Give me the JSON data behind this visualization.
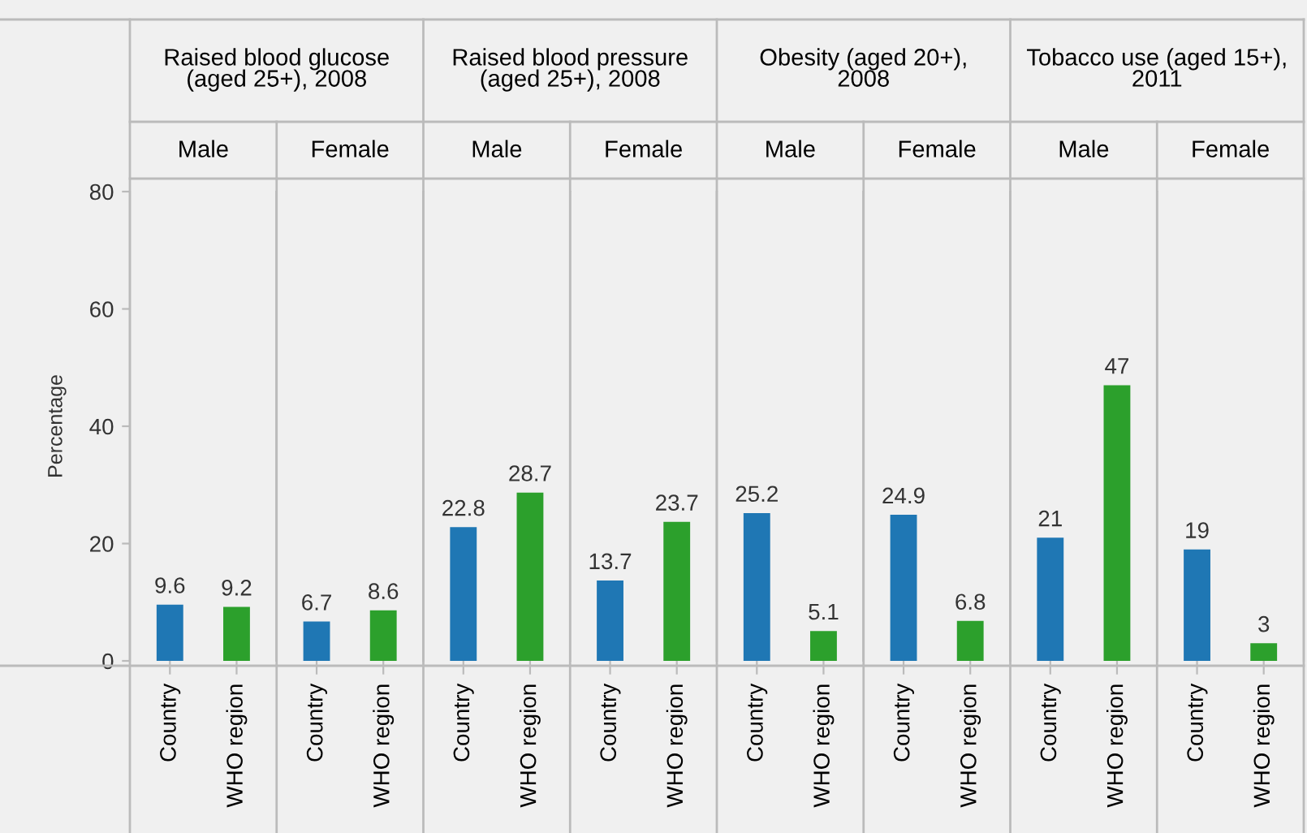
{
  "chart_data": [
    {
      "type": "bar",
      "subtitle": "Raised blood glucose\n(aged 25+), 2008",
      "title": "Male",
      "ylabel": "Percentage",
      "categories": [
        "Country",
        "WHO region"
      ],
      "values": [
        9.6,
        9.2
      ],
      "colors": [
        "#1f77b4",
        "#2ca02c"
      ],
      "data_labels": true,
      "ylim": [
        0,
        80
      ],
      "yticks": [
        0,
        20,
        40,
        60,
        80
      ]
    },
    {
      "type": "bar",
      "title": "Female",
      "categories": [
        "Country",
        "WHO region"
      ],
      "values": [
        6.7,
        8.6
      ],
      "colors": [
        "#1f77b4",
        "#2ca02c"
      ],
      "data_labels": true,
      "ylim": [
        0,
        80
      ],
      "yticks": [
        0,
        20,
        40,
        60,
        80
      ],
      "tick_labels": "x"
    },
    {
      "type": "bar",
      "subtitle": "Raised blood pressure\n(aged 25+), 2008",
      "title": "Male",
      "categories": [
        "Country",
        "WHO region"
      ],
      "values": [
        22.8,
        28.7
      ],
      "colors": [
        "#1f77b4",
        "#2ca02c"
      ],
      "data_labels": true,
      "ylim": [
        0,
        80
      ],
      "yticks": [
        0,
        20,
        40,
        60,
        80
      ],
      "tick_labels": "x"
    },
    {
      "type": "bar",
      "title": "Female",
      "categories": [
        "Country",
        "WHO region"
      ],
      "values": [
        13.7,
        23.7
      ],
      "colors": [
        "#1f77b4",
        "#2ca02c"
      ],
      "data_labels": true,
      "ylim": [
        0,
        80
      ],
      "yticks": [
        0,
        20,
        40,
        60,
        80
      ],
      "tick_labels": "x"
    },
    {
      "type": "bar",
      "subtitle": "Obesity (aged 20+),\n2008",
      "title": "Male",
      "categories": [
        "Country",
        "WHO region"
      ],
      "values": [
        25.2,
        5.1
      ],
      "colors": [
        "#1f77b4",
        "#2ca02c"
      ],
      "data_labels": true,
      "ylim": [
        0,
        80
      ],
      "yticks": [
        0,
        20,
        40,
        60,
        80
      ],
      "tick_labels": "x"
    },
    {
      "type": "bar",
      "title": "Female",
      "categories": [
        "Country",
        "WHO region"
      ],
      "values": [
        24.9,
        6.8
      ],
      "colors": [
        "#1f77b4",
        "#2ca02c"
      ],
      "data_labels": true,
      "ylim": [
        0,
        80
      ],
      "yticks": [
        0,
        20,
        40,
        60,
        80
      ],
      "tick_labels": "x"
    },
    {
      "type": "bar",
      "subtitle": "Tobacco use (aged 15+),\n2011",
      "title": "Male",
      "categories": [
        "Country",
        "WHO region"
      ],
      "values": [
        21,
        47
      ],
      "colors": [
        "#1f77b4",
        "#2ca02c"
      ],
      "data_labels": true,
      "ylim": [
        0,
        80
      ],
      "yticks": [
        0,
        20,
        40,
        60,
        80
      ],
      "tick_labels": "x"
    },
    {
      "type": "bar",
      "title": "Female",
      "categories": [
        "Country",
        "WHO region"
      ],
      "values": [
        19,
        3
      ],
      "colors": [
        "#1f77b4",
        "#2ca02c"
      ],
      "data_labels": true,
      "ylim": [
        0,
        80
      ],
      "yticks": [
        0,
        20,
        40,
        60,
        80
      ],
      "tick_labels": "x"
    }
  ]
}
